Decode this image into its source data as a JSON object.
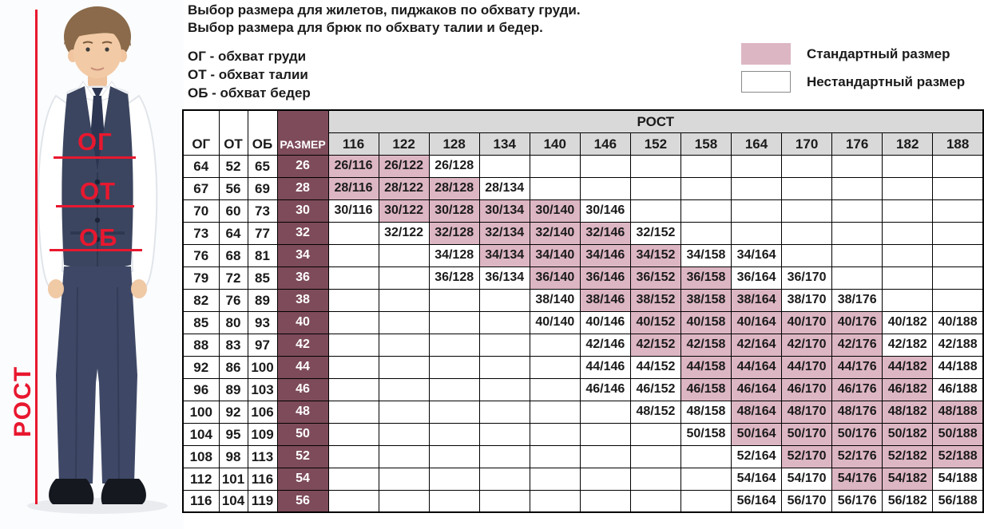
{
  "intro": {
    "line1": "Выбор размера для жилетов, пиджаков по обхвату груди.",
    "line2": "Выбор размера для брюк по обхвату талии и бедер.",
    "definitions": [
      "ОГ - обхват груди",
      "ОТ - обхват талии",
      "ОБ - обхват бедер"
    ]
  },
  "legend": {
    "standard_label": "Стандартный размер",
    "nonstandard_label": "Нестандартный размер",
    "standard_color": "#ddb6c3",
    "nonstandard_color": "#ffffff"
  },
  "figure": {
    "chest_label": "ОГ",
    "waist_label": "ОТ",
    "hips_label": "ОБ",
    "height_label": "РОСТ",
    "annotation_color": "#e8182f"
  },
  "table": {
    "col_headers": {
      "og": "ОГ",
      "ot": "ОТ",
      "ob": "ОБ",
      "size": "РАЗМЕР",
      "rost": "РОСТ"
    },
    "heights": [
      116,
      122,
      128,
      134,
      140,
      146,
      152,
      158,
      164,
      170,
      176,
      182,
      188
    ],
    "colors": {
      "size_col": "#7d4b5a",
      "standard": "#ddb6c3",
      "header_gray": "#d9d9d9"
    },
    "rows": [
      {
        "og": 64,
        "ot": 52,
        "ob": 65,
        "size": 26,
        "cells": [
          {
            "v": "26/116",
            "s": 1
          },
          {
            "v": "26/122",
            "s": 1
          },
          {
            "v": "26/128",
            "s": 0
          },
          null,
          null,
          null,
          null,
          null,
          null,
          null,
          null,
          null,
          null
        ]
      },
      {
        "og": 67,
        "ot": 56,
        "ob": 69,
        "size": 28,
        "cells": [
          {
            "v": "28/116",
            "s": 1
          },
          {
            "v": "28/122",
            "s": 1
          },
          {
            "v": "28/128",
            "s": 1
          },
          {
            "v": "28/134",
            "s": 0
          },
          null,
          null,
          null,
          null,
          null,
          null,
          null,
          null,
          null
        ]
      },
      {
        "og": 70,
        "ot": 60,
        "ob": 73,
        "size": 30,
        "cells": [
          {
            "v": "30/116",
            "s": 0
          },
          {
            "v": "30/122",
            "s": 1
          },
          {
            "v": "30/128",
            "s": 1
          },
          {
            "v": "30/134",
            "s": 1
          },
          {
            "v": "30/140",
            "s": 1
          },
          {
            "v": "30/146",
            "s": 0
          },
          null,
          null,
          null,
          null,
          null,
          null,
          null
        ]
      },
      {
        "og": 73,
        "ot": 64,
        "ob": 77,
        "size": 32,
        "cells": [
          null,
          {
            "v": "32/122",
            "s": 0
          },
          {
            "v": "32/128",
            "s": 1
          },
          {
            "v": "32/134",
            "s": 1
          },
          {
            "v": "32/140",
            "s": 1
          },
          {
            "v": "32/146",
            "s": 1
          },
          {
            "v": "32/152",
            "s": 0
          },
          null,
          null,
          null,
          null,
          null,
          null
        ]
      },
      {
        "og": 76,
        "ot": 68,
        "ob": 81,
        "size": 34,
        "cells": [
          null,
          null,
          {
            "v": "34/128",
            "s": 0
          },
          {
            "v": "34/134",
            "s": 1
          },
          {
            "v": "34/140",
            "s": 1
          },
          {
            "v": "34/146",
            "s": 1
          },
          {
            "v": "34/152",
            "s": 1
          },
          {
            "v": "34/158",
            "s": 0
          },
          {
            "v": "34/164",
            "s": 0
          },
          null,
          null,
          null,
          null
        ]
      },
      {
        "og": 79,
        "ot": 72,
        "ob": 85,
        "size": 36,
        "cells": [
          null,
          null,
          {
            "v": "36/128",
            "s": 0
          },
          {
            "v": "36/134",
            "s": 0
          },
          {
            "v": "36/140",
            "s": 1
          },
          {
            "v": "36/146",
            "s": 1
          },
          {
            "v": "36/152",
            "s": 1
          },
          {
            "v": "36/158",
            "s": 1
          },
          {
            "v": "36/164",
            "s": 0
          },
          {
            "v": "36/170",
            "s": 0
          },
          null,
          null,
          null
        ]
      },
      {
        "og": 82,
        "ot": 76,
        "ob": 89,
        "size": 38,
        "cells": [
          null,
          null,
          null,
          null,
          {
            "v": "38/140",
            "s": 0
          },
          {
            "v": "38/146",
            "s": 1
          },
          {
            "v": "38/152",
            "s": 1
          },
          {
            "v": "38/158",
            "s": 1
          },
          {
            "v": "38/164",
            "s": 1
          },
          {
            "v": "38/170",
            "s": 0
          },
          {
            "v": "38/176",
            "s": 0
          },
          null,
          null
        ]
      },
      {
        "og": 85,
        "ot": 80,
        "ob": 93,
        "size": 40,
        "cells": [
          null,
          null,
          null,
          null,
          {
            "v": "40/140",
            "s": 0
          },
          {
            "v": "40/146",
            "s": 0
          },
          {
            "v": "40/152",
            "s": 1
          },
          {
            "v": "40/158",
            "s": 1
          },
          {
            "v": "40/164",
            "s": 1
          },
          {
            "v": "40/170",
            "s": 1
          },
          {
            "v": "40/176",
            "s": 1
          },
          {
            "v": "40/182",
            "s": 0
          },
          {
            "v": "40/188",
            "s": 0
          }
        ]
      },
      {
        "og": 88,
        "ot": 83,
        "ob": 97,
        "size": 42,
        "cells": [
          null,
          null,
          null,
          null,
          null,
          {
            "v": "42/146",
            "s": 0
          },
          {
            "v": "42/152",
            "s": 1
          },
          {
            "v": "42/158",
            "s": 1
          },
          {
            "v": "42/164",
            "s": 1
          },
          {
            "v": "42/170",
            "s": 1
          },
          {
            "v": "42/176",
            "s": 1
          },
          {
            "v": "42/182",
            "s": 0
          },
          {
            "v": "42/188",
            "s": 0
          }
        ]
      },
      {
        "og": 92,
        "ot": 86,
        "ob": 100,
        "size": 44,
        "cells": [
          null,
          null,
          null,
          null,
          null,
          {
            "v": "44/146",
            "s": 0
          },
          {
            "v": "44/152",
            "s": 0
          },
          {
            "v": "44/158",
            "s": 1
          },
          {
            "v": "44/164",
            "s": 1
          },
          {
            "v": "44/170",
            "s": 1
          },
          {
            "v": "44/176",
            "s": 1
          },
          {
            "v": "44/182",
            "s": 1
          },
          {
            "v": "44/188",
            "s": 0
          }
        ]
      },
      {
        "og": 96,
        "ot": 89,
        "ob": 103,
        "size": 46,
        "cells": [
          null,
          null,
          null,
          null,
          null,
          {
            "v": "46/146",
            "s": 0
          },
          {
            "v": "46/152",
            "s": 0
          },
          {
            "v": "46/158",
            "s": 1
          },
          {
            "v": "46/164",
            "s": 1
          },
          {
            "v": "46/170",
            "s": 1
          },
          {
            "v": "46/176",
            "s": 1
          },
          {
            "v": "46/182",
            "s": 1
          },
          {
            "v": "46/188",
            "s": 0
          }
        ]
      },
      {
        "og": 100,
        "ot": 92,
        "ob": 106,
        "size": 48,
        "cells": [
          null,
          null,
          null,
          null,
          null,
          null,
          {
            "v": "48/152",
            "s": 0
          },
          {
            "v": "48/158",
            "s": 0
          },
          {
            "v": "48/164",
            "s": 1
          },
          {
            "v": "48/170",
            "s": 1
          },
          {
            "v": "48/176",
            "s": 1
          },
          {
            "v": "48/182",
            "s": 1
          },
          {
            "v": "48/188",
            "s": 1
          }
        ]
      },
      {
        "og": 104,
        "ot": 95,
        "ob": 109,
        "size": 50,
        "cells": [
          null,
          null,
          null,
          null,
          null,
          null,
          null,
          {
            "v": "50/158",
            "s": 0
          },
          {
            "v": "50/164",
            "s": 1
          },
          {
            "v": "50/170",
            "s": 1
          },
          {
            "v": "50/176",
            "s": 1
          },
          {
            "v": "50/182",
            "s": 1
          },
          {
            "v": "50/188",
            "s": 1
          }
        ]
      },
      {
        "og": 108,
        "ot": 98,
        "ob": 113,
        "size": 52,
        "cells": [
          null,
          null,
          null,
          null,
          null,
          null,
          null,
          null,
          {
            "v": "52/164",
            "s": 0
          },
          {
            "v": "52/170",
            "s": 1
          },
          {
            "v": "52/176",
            "s": 1
          },
          {
            "v": "52/182",
            "s": 1
          },
          {
            "v": "52/188",
            "s": 1
          }
        ]
      },
      {
        "og": 112,
        "ot": 101,
        "ob": 116,
        "size": 54,
        "cells": [
          null,
          null,
          null,
          null,
          null,
          null,
          null,
          null,
          {
            "v": "54/164",
            "s": 0
          },
          {
            "v": "54/170",
            "s": 0
          },
          {
            "v": "54/176",
            "s": 1
          },
          {
            "v": "54/182",
            "s": 1
          },
          {
            "v": "54/188",
            "s": 0
          }
        ]
      },
      {
        "og": 116,
        "ot": 104,
        "ob": 119,
        "size": 56,
        "cells": [
          null,
          null,
          null,
          null,
          null,
          null,
          null,
          null,
          {
            "v": "56/164",
            "s": 0
          },
          {
            "v": "56/170",
            "s": 0
          },
          {
            "v": "56/176",
            "s": 0
          },
          {
            "v": "56/182",
            "s": 0
          },
          {
            "v": "56/188",
            "s": 0
          }
        ]
      }
    ]
  }
}
